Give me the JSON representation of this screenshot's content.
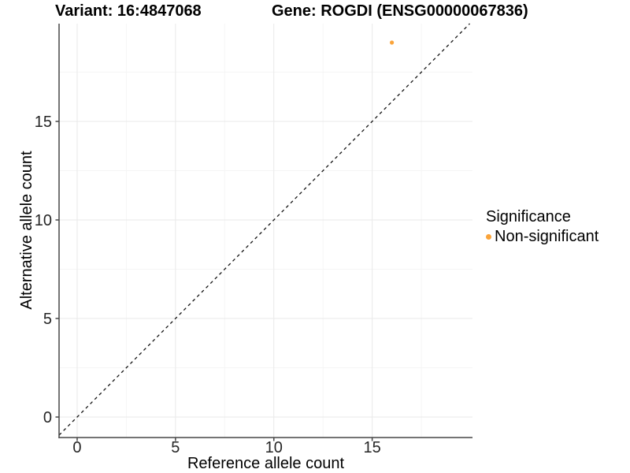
{
  "figure": {
    "title_left": "Variant: 16:4847068",
    "title_right": "Gene: ROGDI (ENSG00000067836)"
  },
  "chart_data": {
    "type": "scatter",
    "title": "Variant: 16:4847068 | Gene: ROGDI (ENSG00000067836)",
    "xlabel": "Reference allele count",
    "ylabel": "Alternative allele count",
    "xlim": [
      -0.92,
      20.1
    ],
    "ylim": [
      -1.04,
      19.96
    ],
    "x_ticks": [
      0,
      5,
      10,
      15
    ],
    "y_ticks": [
      0,
      5,
      10,
      15
    ],
    "x_minor_ticks": [
      2.5,
      7.5,
      12.5,
      17.5
    ],
    "y_minor_ticks": [
      2.5,
      7.5,
      12.5,
      17.5
    ],
    "grid": "major+minor",
    "series": [
      {
        "name": "Non-significant",
        "color": "#FAA43A",
        "points": [
          {
            "x": 16,
            "y": 19
          }
        ]
      }
    ],
    "identity_line": {
      "slope": 1,
      "intercept": 0,
      "style": "dashed",
      "color": "#141414"
    },
    "legend_position": "right"
  },
  "legend": {
    "title": "Significance",
    "items": [
      {
        "label": "Non-significant",
        "color": "#FAA43A"
      }
    ]
  },
  "colors": {
    "point": "#FAA43A",
    "grid_major": "#E9E9E9",
    "grid_minor": "#F5F5F5",
    "axis_line": "#464646",
    "tick_text": "#262626",
    "dashed_line": "#141414",
    "background": "#FFFFFF"
  }
}
